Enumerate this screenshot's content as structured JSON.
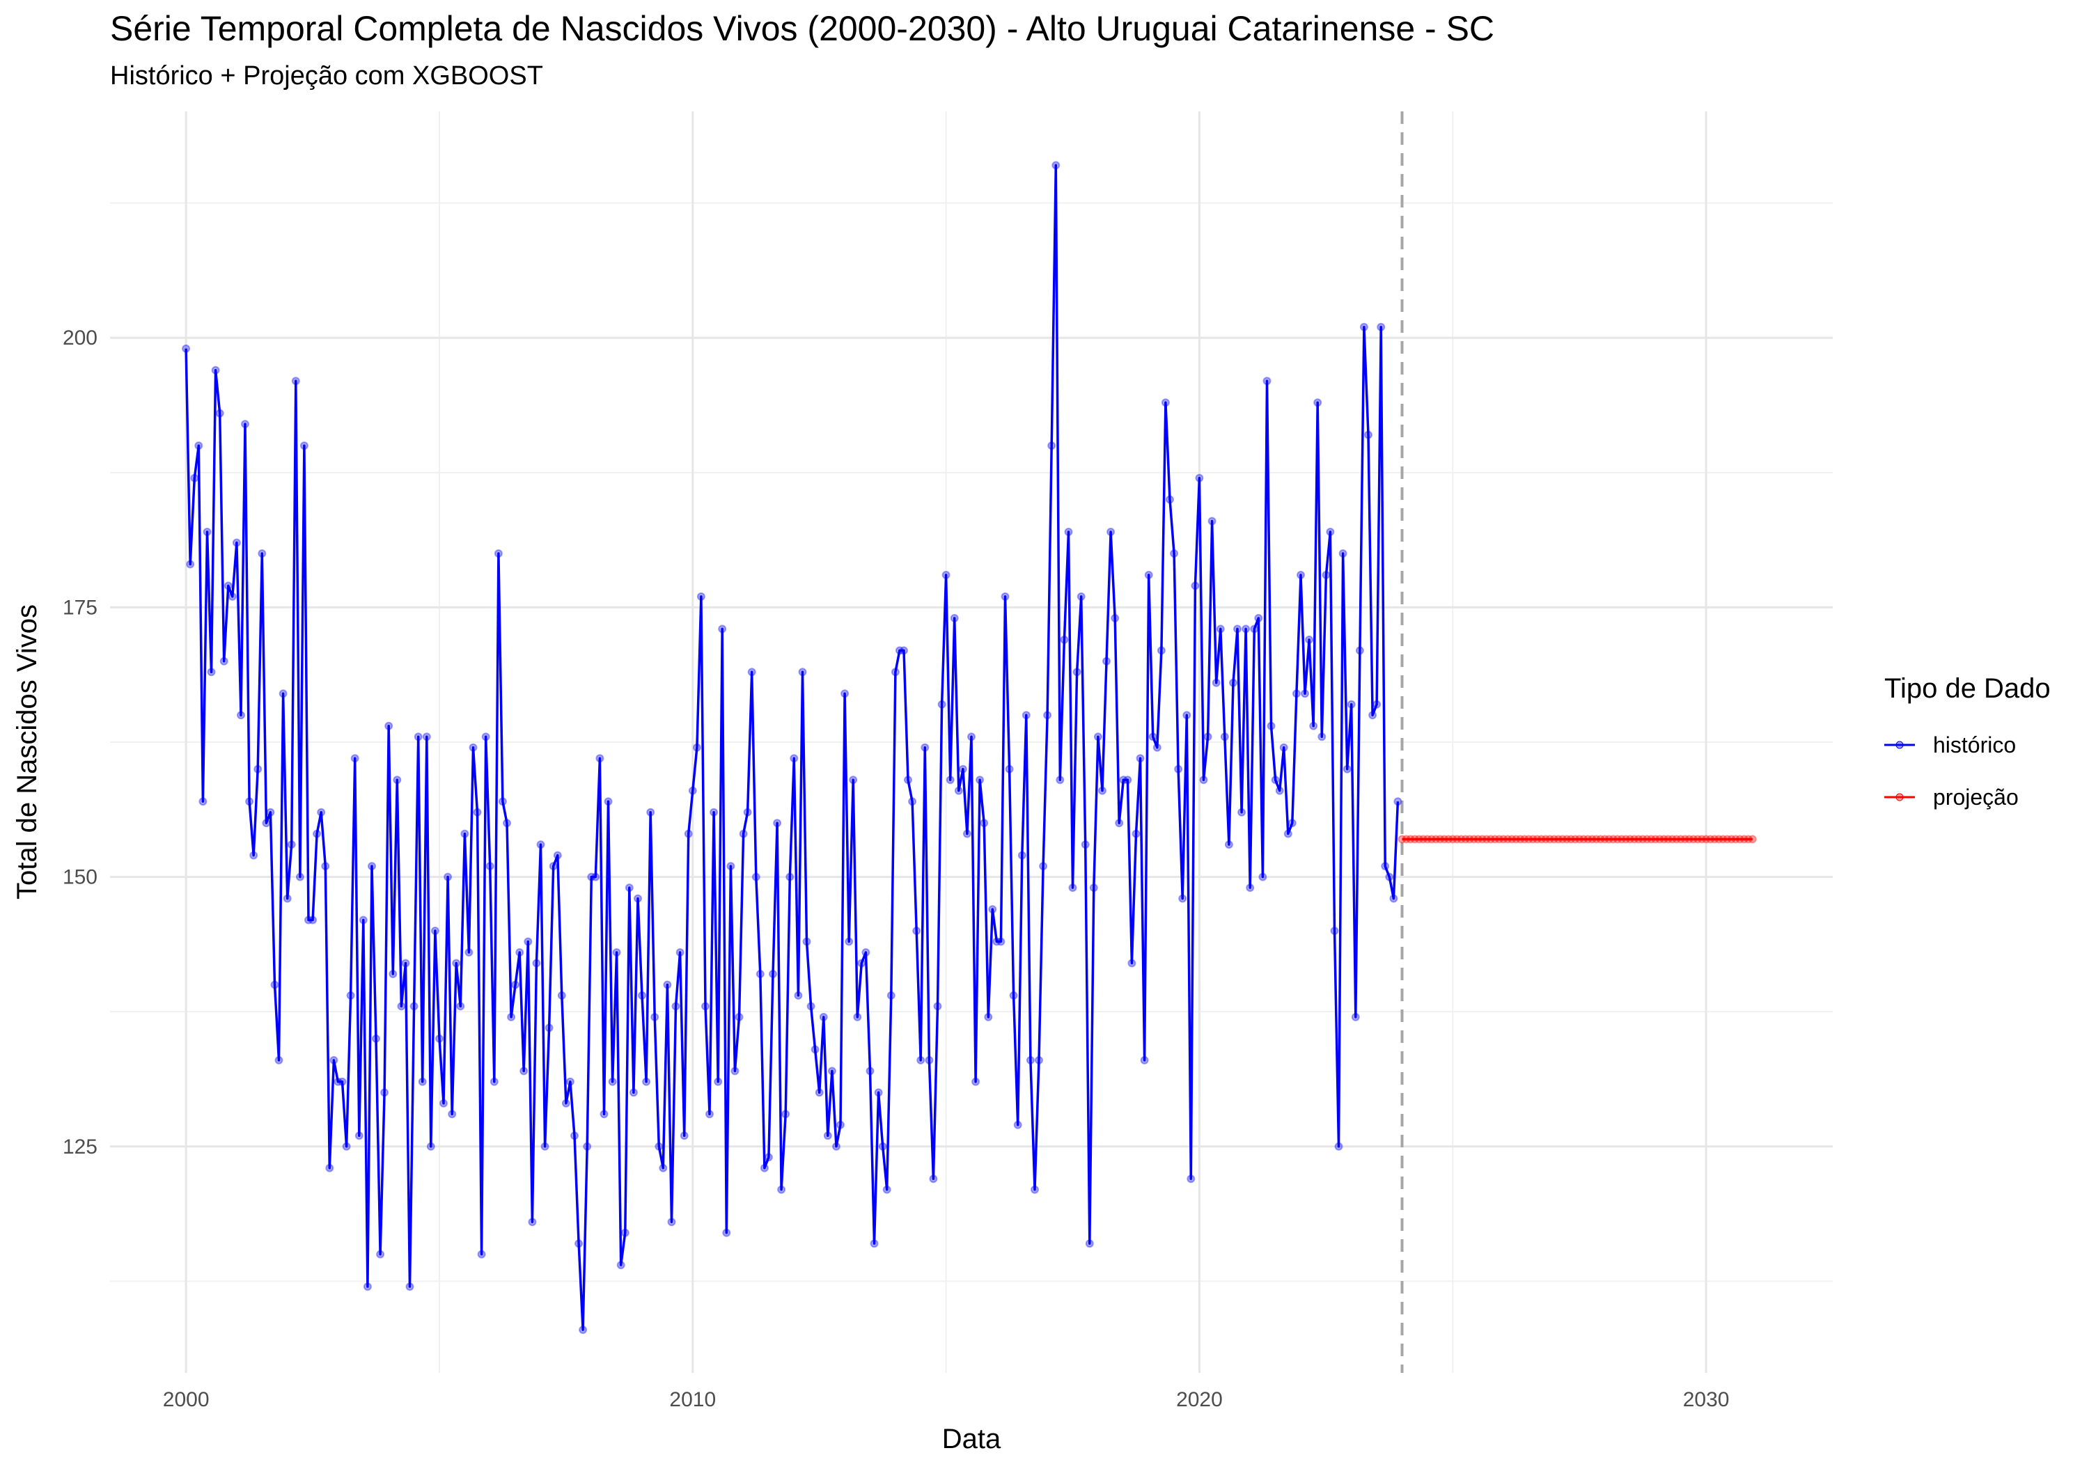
{
  "chart_data": {
    "type": "line",
    "title": "Série Temporal Completa de Nascidos Vivos (2000-2030) -  Alto Uruguai Catarinense - SC",
    "subtitle": "Histórico + Projeção com XGBOOST",
    "xlabel": "Data",
    "ylabel": "Total de Nascidos Vivos",
    "xlim": [
      1998.5,
      2032.5
    ],
    "ylim": [
      104,
      221
    ],
    "x_ticks": [
      2000,
      2010,
      2020,
      2030
    ],
    "y_ticks": [
      125,
      150,
      175,
      200
    ],
    "grid": true,
    "vline": {
      "x": 2024.0,
      "style": "dashed",
      "color": "#a6a6a6"
    },
    "legend": {
      "title": "Tipo de Dado",
      "placement": "right"
    },
    "series": [
      {
        "name": "histórico",
        "color": "#0000ff",
        "start": [
          2000,
          1
        ],
        "frequency": "monthly",
        "values": [
          199,
          179,
          187,
          190,
          157,
          182,
          169,
          197,
          193,
          170,
          177,
          176,
          181,
          165,
          192,
          157,
          152,
          160,
          180,
          155,
          156,
          140,
          133,
          167,
          148,
          153,
          196,
          150,
          190,
          146,
          146,
          154,
          156,
          151,
          123,
          133,
          131,
          131,
          125,
          139,
          161,
          126,
          146,
          112,
          151,
          135,
          115,
          130,
          164,
          141,
          159,
          138,
          142,
          112,
          138,
          163,
          131,
          163,
          125,
          145,
          135,
          129,
          150,
          128,
          142,
          138,
          154,
          143,
          162,
          156,
          115,
          163,
          151,
          131,
          180,
          157,
          155,
          137,
          140,
          143,
          132,
          144,
          118,
          142,
          153,
          125,
          136,
          151,
          152,
          139,
          129,
          131,
          126,
          116,
          108,
          125,
          150,
          150,
          161,
          128,
          157,
          131,
          143,
          114,
          117,
          149,
          130,
          148,
          139,
          131,
          156,
          137,
          125,
          123,
          140,
          118,
          138,
          143,
          126,
          154,
          158,
          162,
          176,
          138,
          128,
          156,
          131,
          173,
          117,
          151,
          132,
          137,
          154,
          156,
          169,
          150,
          141,
          123,
          124,
          141,
          155,
          121,
          128,
          150,
          161,
          139,
          169,
          144,
          138,
          134,
          130,
          137,
          126,
          132,
          125,
          127,
          167,
          144,
          159,
          137,
          142,
          143,
          132,
          116,
          130,
          125,
          121,
          139,
          169,
          171,
          171,
          159,
          157,
          145,
          133,
          162,
          133,
          122,
          138,
          166,
          178,
          159,
          174,
          158,
          160,
          154,
          163,
          131,
          159,
          155,
          137,
          147,
          144,
          144,
          176,
          160,
          139,
          127,
          152,
          165,
          133,
          121,
          133,
          151,
          165,
          190,
          216,
          159,
          172,
          182,
          149,
          169,
          176,
          153,
          116,
          149,
          163,
          158,
          170,
          182,
          174,
          155,
          159,
          159,
          142,
          154,
          161,
          133,
          178,
          163,
          162,
          171,
          194,
          185,
          180,
          160,
          148,
          165,
          122,
          177,
          187,
          159,
          163,
          183,
          168,
          173,
          163,
          153,
          168,
          173,
          156,
          173,
          149,
          173,
          174,
          150,
          196,
          164,
          159,
          158,
          162,
          154,
          155,
          167,
          178,
          167,
          172,
          164,
          194,
          163,
          178,
          182,
          145,
          125,
          180,
          160,
          166,
          137,
          171,
          201,
          191,
          165,
          166,
          201,
          151,
          150,
          148,
          157
        ]
      },
      {
        "name": "projeção",
        "color": "#ff0000",
        "start": [
          2024,
          1
        ],
        "end": [
          2030,
          12
        ],
        "frequency": "monthly",
        "value": 153.5
      }
    ]
  }
}
